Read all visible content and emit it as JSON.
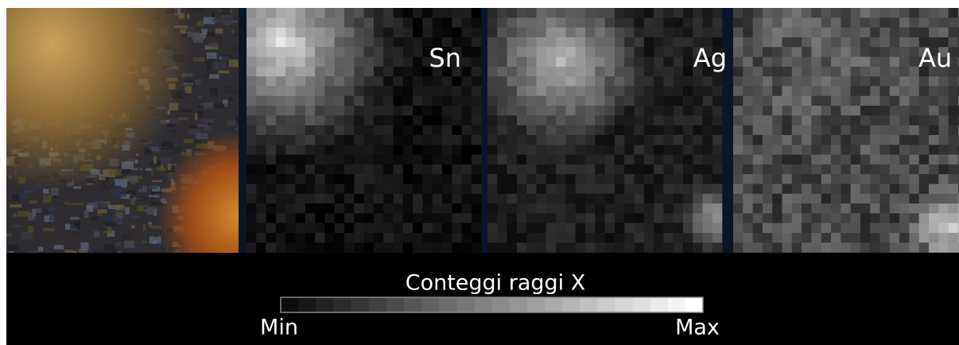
{
  "panels": {
    "photo": {},
    "maps": [
      {
        "label": "Sn"
      },
      {
        "label": "Ag"
      },
      {
        "label": "Au"
      }
    ]
  },
  "colorbar": {
    "title": "Conteggi raggi X",
    "min_label": "Min",
    "max_label": "Max"
  }
}
